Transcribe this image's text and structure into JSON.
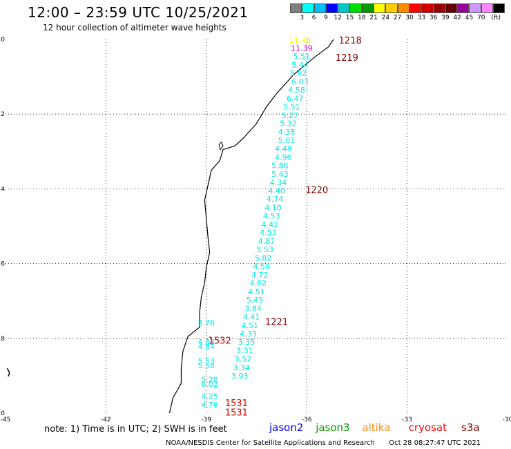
{
  "header": {
    "title": "12:00 – 23:59 UTC 10/25/2021",
    "subtitle": "12 hour collection of altimeter wave heights"
  },
  "legend": {
    "colors": [
      "#808080",
      "#00ffff",
      "#00bfff",
      "#0000ff",
      "#00c8c8",
      "#00dd00",
      "#009900",
      "#ffff00",
      "#ffd000",
      "#ff8c00",
      "#ff0000",
      "#cc0000",
      "#990000",
      "#660000",
      "#990099",
      "#cc99ff",
      "#ff88ff",
      "#000000"
    ],
    "labels": [
      "3",
      "6",
      "9",
      "12",
      "15",
      "18",
      "21",
      "24",
      "27",
      "30",
      "33",
      "36",
      "39",
      "42",
      "45",
      "70",
      "(ft)"
    ]
  },
  "chart_data": {
    "type": "map",
    "x_ticks": [
      "-45",
      "-42",
      "-39",
      "-36",
      "-33",
      "-30"
    ],
    "y_ticks": [
      "-10",
      "-12",
      "-14",
      "-16",
      "-18",
      "-20"
    ],
    "xlim": [
      -45,
      -30
    ],
    "ylim": [
      -20,
      -10
    ],
    "grid": true,
    "tracks": [
      {
        "time": "1218",
        "color": "#800000",
        "lon": -34.7,
        "lat": -10.02
      },
      {
        "time": "1219",
        "color": "#800000",
        "lon": -34.8,
        "lat": -10.48
      },
      {
        "time": "1220",
        "color": "#800000",
        "lon": -35.7,
        "lat": -14.02
      },
      {
        "time": "1221",
        "color": "#800000",
        "lon": -36.9,
        "lat": -17.55
      },
      {
        "time": "1532",
        "color": "#cc0000",
        "lon": -38.6,
        "lat": -18.05
      },
      {
        "time": "1531",
        "color": "#cc0000",
        "lon": -38.1,
        "lat": -19.72
      },
      {
        "time": "1531",
        "color": "#cc0000",
        "lon": -38.1,
        "lat": -19.97
      }
    ],
    "points": [
      {
        "v": "11.48",
        "lat": -10.02,
        "lon": -36.2,
        "color": "#ffff00"
      },
      {
        "v": "11.39",
        "lat": -10.23,
        "lon": -36.15,
        "color": "#cc00cc"
      },
      {
        "v": "5.51",
        "lat": -10.45,
        "lon": -36.15,
        "color": "#00e5e5"
      },
      {
        "v": "5.44",
        "lat": -10.68,
        "lon": -36.2,
        "color": "#00e5e5"
      },
      {
        "v": "5.62",
        "lat": -10.9,
        "lon": -36.25,
        "color": "#00e5e5"
      },
      {
        "v": "6.03",
        "lat": -11.13,
        "lon": -36.2,
        "color": "#00e5e5"
      },
      {
        "v": "4.58",
        "lat": -11.35,
        "lon": -36.3,
        "color": "#00e5e5"
      },
      {
        "v": "6.47",
        "lat": -11.58,
        "lon": -36.35,
        "color": "#00e5e5"
      },
      {
        "v": "5.51",
        "lat": -11.8,
        "lon": -36.45,
        "color": "#00e5e5"
      },
      {
        "v": "5.27",
        "lat": -12.03,
        "lon": -36.5,
        "color": "#00e5e5"
      },
      {
        "v": "5.32",
        "lat": -12.25,
        "lon": -36.55,
        "color": "#00e5e5"
      },
      {
        "v": "4.38",
        "lat": -12.48,
        "lon": -36.6,
        "color": "#00e5e5"
      },
      {
        "v": "5.01",
        "lat": -12.7,
        "lon": -36.6,
        "color": "#00e5e5"
      },
      {
        "v": "4.48",
        "lat": -12.92,
        "lon": -36.7,
        "color": "#00e5e5"
      },
      {
        "v": "4.96",
        "lat": -13.15,
        "lon": -36.7,
        "color": "#00e5e5"
      },
      {
        "v": "5.86",
        "lat": -13.37,
        "lon": -36.8,
        "color": "#00e5e5"
      },
      {
        "v": "5.43",
        "lat": -13.6,
        "lon": -36.8,
        "color": "#00e5e5"
      },
      {
        "v": "4.34",
        "lat": -13.83,
        "lon": -36.85,
        "color": "#00e5e5"
      },
      {
        "v": "4.40",
        "lat": -14.05,
        "lon": -36.9,
        "color": "#00e5e5"
      },
      {
        "v": "4.74",
        "lat": -14.27,
        "lon": -36.95,
        "color": "#00e5e5"
      },
      {
        "v": "4.10",
        "lat": -14.5,
        "lon": -37.0,
        "color": "#00e5e5"
      },
      {
        "v": "4.53",
        "lat": -14.72,
        "lon": -37.05,
        "color": "#00e5e5"
      },
      {
        "v": "4.42",
        "lat": -14.95,
        "lon": -37.1,
        "color": "#00e5e5"
      },
      {
        "v": "4.53",
        "lat": -15.17,
        "lon": -37.15,
        "color": "#00e5e5"
      },
      {
        "v": "4.87",
        "lat": -15.4,
        "lon": -37.2,
        "color": "#00e5e5"
      },
      {
        "v": "5.53",
        "lat": -15.62,
        "lon": -37.25,
        "color": "#00e5e5"
      },
      {
        "v": "5.82",
        "lat": -15.85,
        "lon": -37.3,
        "color": "#00e5e5"
      },
      {
        "v": "4.59",
        "lat": -16.07,
        "lon": -37.35,
        "color": "#00e5e5"
      },
      {
        "v": "4.72",
        "lat": -16.3,
        "lon": -37.4,
        "color": "#00e5e5"
      },
      {
        "v": "4.62",
        "lat": -16.52,
        "lon": -37.45,
        "color": "#00e5e5"
      },
      {
        "v": "4.51",
        "lat": -16.75,
        "lon": -37.5,
        "color": "#00e5e5"
      },
      {
        "v": "5.45",
        "lat": -16.97,
        "lon": -37.55,
        "color": "#00e5e5"
      },
      {
        "v": "3.84",
        "lat": -17.2,
        "lon": -37.6,
        "color": "#00e5e5"
      },
      {
        "v": "4.41",
        "lat": -17.42,
        "lon": -37.65,
        "color": "#00e5e5"
      },
      {
        "v": "4.51",
        "lat": -17.65,
        "lon": -37.7,
        "color": "#00e5e5"
      },
      {
        "v": "4.33",
        "lat": -17.87,
        "lon": -37.75,
        "color": "#00e5e5"
      },
      {
        "v": "3.35",
        "lat": -18.1,
        "lon": -37.8,
        "color": "#00e5e5"
      },
      {
        "v": "3.31",
        "lat": -18.33,
        "lon": -37.85,
        "color": "#00e5e5"
      },
      {
        "v": "3.52",
        "lat": -18.55,
        "lon": -37.9,
        "color": "#00e5e5"
      },
      {
        "v": "3.34",
        "lat": -18.78,
        "lon": -37.95,
        "color": "#00e5e5"
      },
      {
        "v": "3.93",
        "lat": -19.0,
        "lon": -38.0,
        "color": "#00e5e5"
      },
      {
        "v": "3.76",
        "lat": -17.58,
        "lon": -39.0,
        "color": "#00e5e5"
      },
      {
        "v": "4.88",
        "lat": -18.1,
        "lon": -39.0,
        "color": "#00e5e5"
      },
      {
        "v": "4.84",
        "lat": -18.22,
        "lon": -39.0,
        "color": "#00e5e5"
      },
      {
        "v": "5.53",
        "lat": -18.6,
        "lon": -39.0,
        "color": "#00e5e5"
      },
      {
        "v": "5.58",
        "lat": -18.72,
        "lon": -39.0,
        "color": "#00e5e5"
      },
      {
        "v": "5.28",
        "lat": -19.1,
        "lon": -38.9,
        "color": "#00e5e5"
      },
      {
        "v": "6.02",
        "lat": -19.22,
        "lon": -38.9,
        "color": "#00e5e5"
      },
      {
        "v": "4.25",
        "lat": -19.55,
        "lon": -38.9,
        "color": "#00e5e5"
      },
      {
        "v": "4.76",
        "lat": -19.78,
        "lon": -38.9,
        "color": "#00e5e5"
      }
    ]
  },
  "footer": {
    "note": "note:  1) Time is in UTC;  2) SWH is in feet",
    "satellites": [
      {
        "name": "jason2",
        "color": "#0000ff"
      },
      {
        "name": "jason3",
        "color": "#009900"
      },
      {
        "name": "altika",
        "color": "#ff8c00"
      },
      {
        "name": "cryosat",
        "color": "#ff0000"
      },
      {
        "name": "s3a",
        "color": "#800000"
      }
    ],
    "credit": "NOAA/NESDIS Center for Satellite Applications and Research",
    "timestamp": "Oct 28 08:27:47 UTC 2021"
  }
}
